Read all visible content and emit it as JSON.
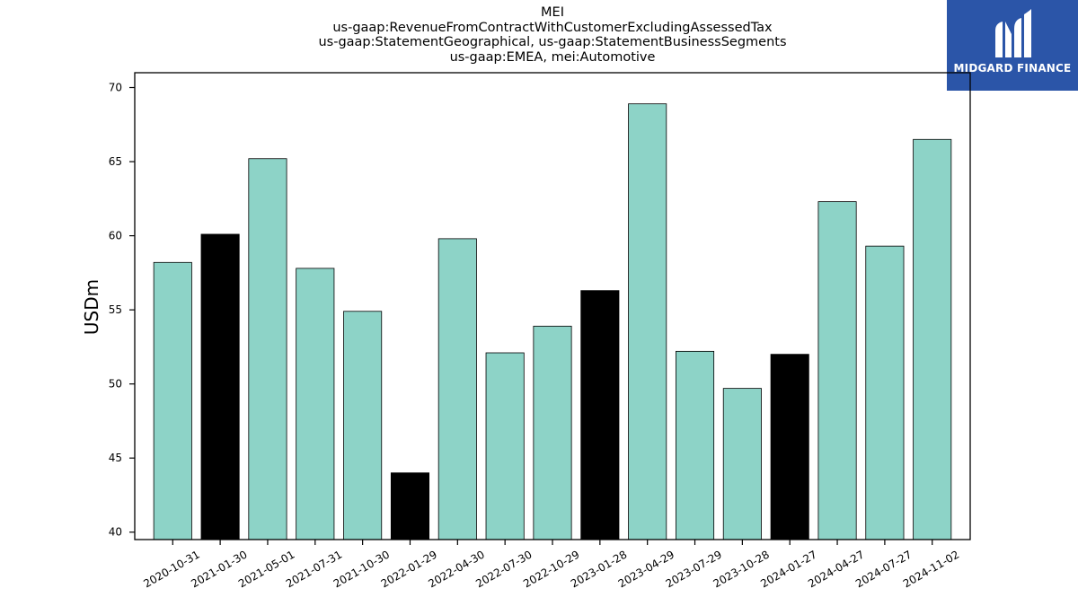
{
  "logo": {
    "name": "MIDGARD FINANCE",
    "icon": "mi-monogram-icon",
    "color": "#2b55a8"
  },
  "chart_data": {
    "type": "bar",
    "title_lines": [
      "MEI",
      "us-gaap:RevenueFromContractWithCustomerExcludingAssessedTax",
      "us-gaap:StatementGeographical, us-gaap:StatementBusinessSegments",
      "us-gaap:EMEA, mei:Automotive"
    ],
    "xlabel": "",
    "ylabel": "USDm",
    "ylim": [
      39.5,
      71
    ],
    "yticks": [
      40,
      45,
      50,
      55,
      60,
      65,
      70
    ],
    "grid": false,
    "categories": [
      "2020-10-31",
      "2021-01-30",
      "2021-05-01",
      "2021-07-31",
      "2021-10-30",
      "2022-01-29",
      "2022-04-30",
      "2022-07-30",
      "2022-10-29",
      "2023-01-28",
      "2023-04-29",
      "2023-07-29",
      "2023-10-28",
      "2024-01-27",
      "2024-04-27",
      "2024-07-27",
      "2024-11-02"
    ],
    "values": [
      58.2,
      60.1,
      65.2,
      57.8,
      54.9,
      44.0,
      59.8,
      52.1,
      53.9,
      56.3,
      68.9,
      52.2,
      49.7,
      52.0,
      62.3,
      59.3,
      66.5
    ],
    "highlight": [
      false,
      true,
      false,
      false,
      false,
      true,
      false,
      false,
      false,
      true,
      false,
      false,
      false,
      true,
      false,
      false,
      false
    ],
    "colors": {
      "bar": "#8dd3c7",
      "highlight": "#000000",
      "edge": "#000000"
    }
  }
}
